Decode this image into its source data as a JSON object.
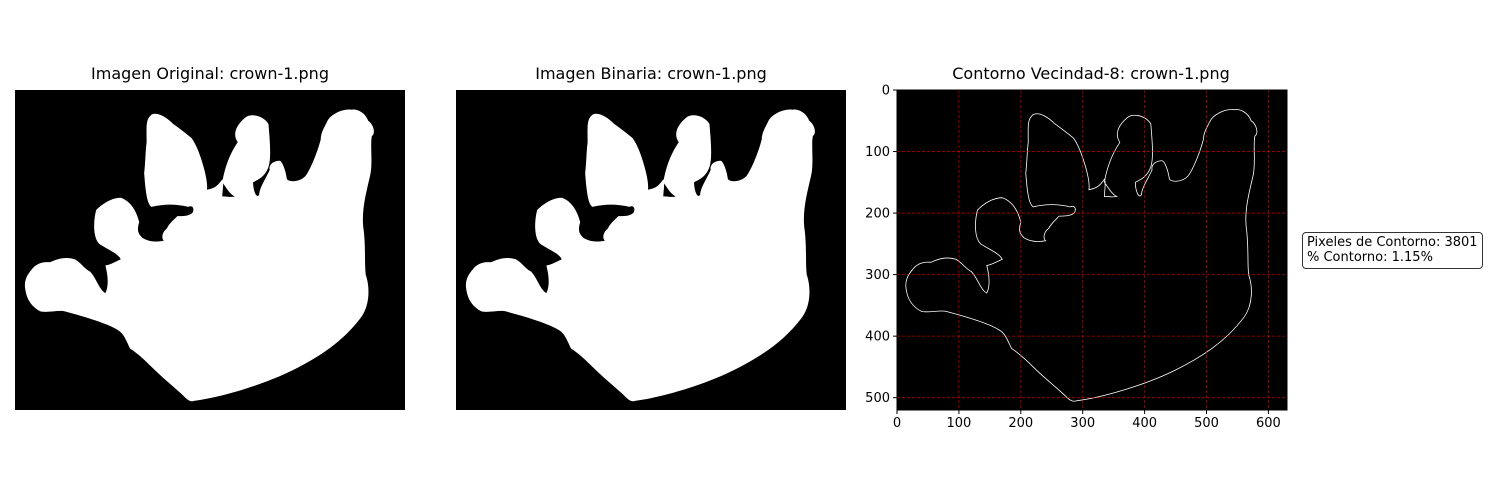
{
  "panels": [
    {
      "title": "Imagen Original: crown-1.png"
    },
    {
      "title": "Imagen Binaria: crown-1.png"
    },
    {
      "title": "Contorno Vecindad-8: crown-1.png"
    }
  ],
  "info_box": {
    "line1": "Pixeles de Contorno: 3801",
    "line2": "% Contorno: 1.15%"
  },
  "colors": {
    "background": "#000000",
    "shape": "#ffffff",
    "grid": "#ff0000"
  },
  "chart_data": [
    {
      "type": "image",
      "title": "Imagen Original: crown-1.png",
      "axes_visible": false
    },
    {
      "type": "image",
      "title": "Imagen Binaria: crown-1.png",
      "axes_visible": false
    },
    {
      "type": "contour_image",
      "title": "Contorno Vecindad-8: crown-1.png",
      "xlim": [
        0,
        630
      ],
      "ylim": [
        520,
        0
      ],
      "xticks": [
        0,
        100,
        200,
        300,
        400,
        500,
        600
      ],
      "yticks": [
        0,
        100,
        200,
        300,
        400,
        500
      ],
      "grid": true,
      "grid_style": "red dashed",
      "contour_pixels": 3801,
      "contour_percent": 1.15
    }
  ]
}
